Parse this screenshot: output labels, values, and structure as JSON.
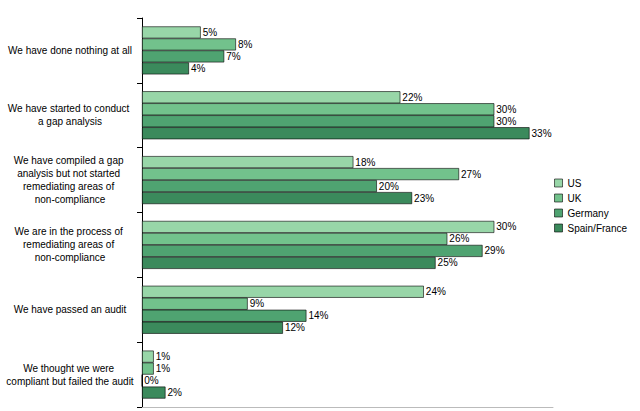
{
  "chart_data": {
    "type": "bar",
    "orientation": "horizontal",
    "categories": [
      "We have done nothing at all",
      "We have started to conduct a gap analysis",
      "We have compiled a gap analysis but not started remediating areas of non-compliance",
      "We are in the process of remediating areas of non-compliance",
      "We have passed an audit",
      "We thought we were compliant but failed the audit"
    ],
    "series": [
      {
        "name": "US",
        "color": "#98d6a8",
        "values": [
          5,
          22,
          18,
          30,
          24,
          1
        ],
        "value_labels": [
          "5%",
          "22%",
          "18%",
          "30%",
          "24%",
          "1%"
        ]
      },
      {
        "name": "UK",
        "color": "#72c28c",
        "values": [
          8,
          30,
          27,
          26,
          9,
          1
        ],
        "value_labels": [
          "8%",
          "30%",
          "27%",
          "26%",
          "9%",
          "1%"
        ]
      },
      {
        "name": "Germany",
        "color": "#4fa371",
        "values": [
          7,
          30,
          20,
          29,
          14,
          0
        ],
        "value_labels": [
          "7%",
          "30%",
          "20%",
          "29%",
          "14%",
          "0%"
        ]
      },
      {
        "name": "Spain/France",
        "color": "#3b8a5c",
        "values": [
          4,
          33,
          23,
          25,
          12,
          2
        ],
        "value_labels": [
          "4%",
          "33%",
          "23%",
          "25%",
          "12%",
          "2%"
        ]
      }
    ],
    "xlim": [
      0,
      35
    ],
    "grid": false,
    "legend": "right",
    "data_labels": true,
    "tick_labels": "y"
  }
}
